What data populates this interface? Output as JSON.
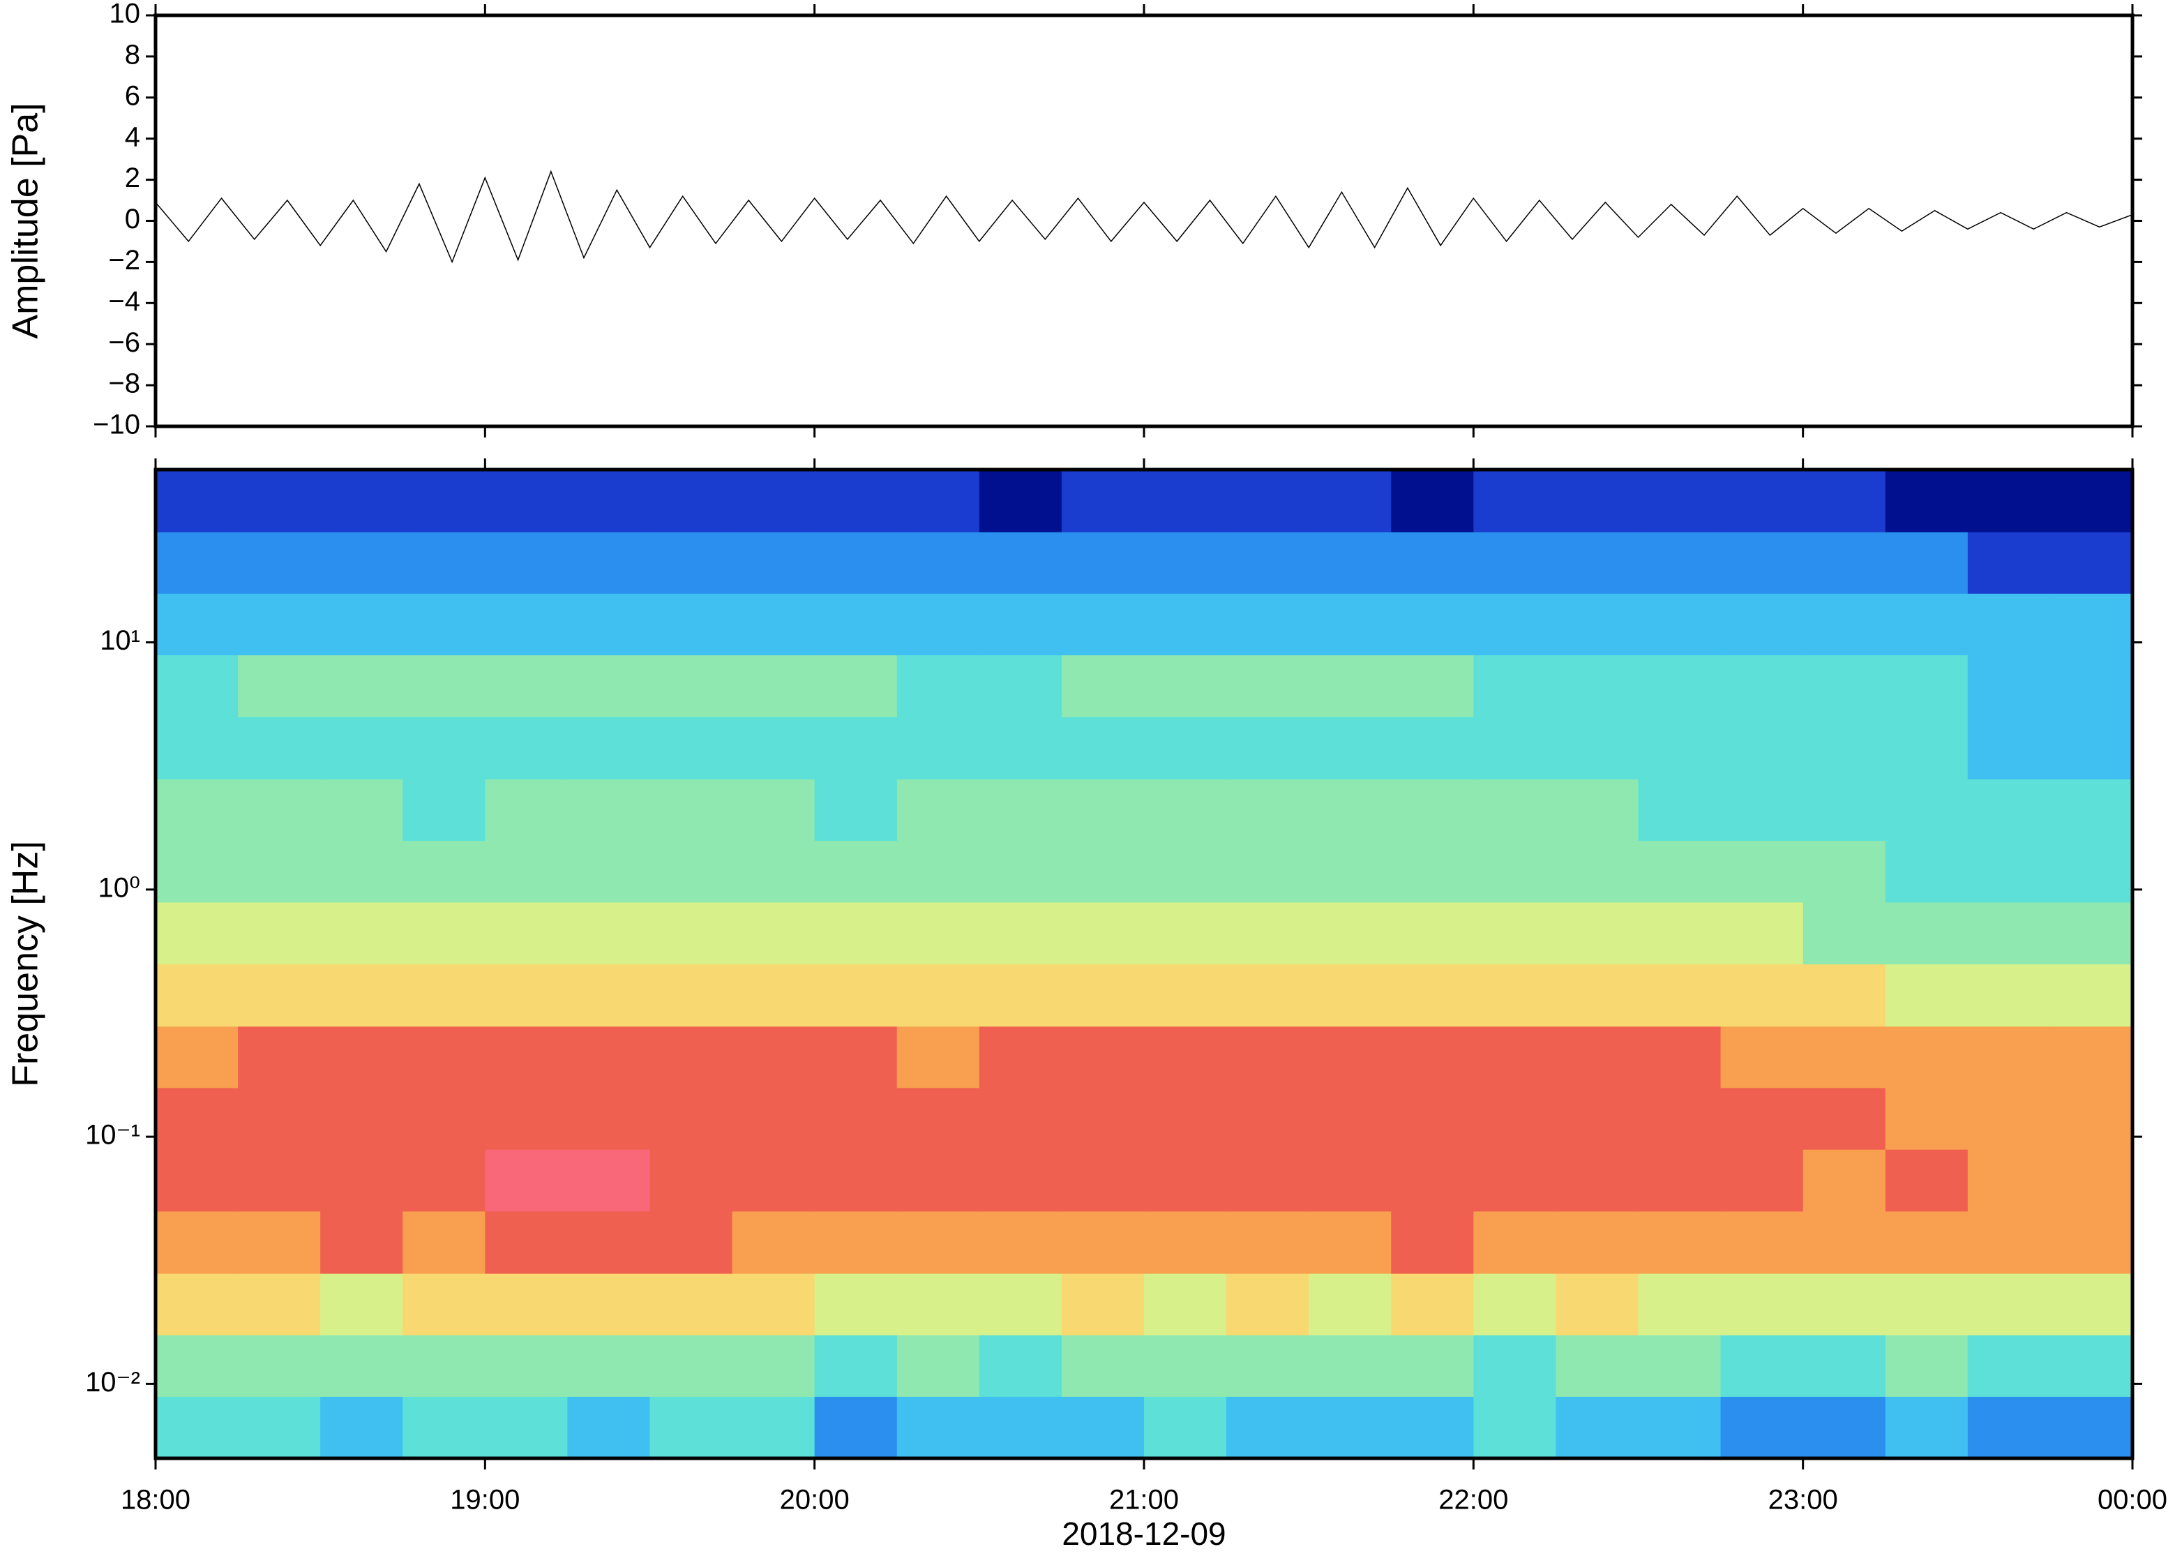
{
  "chart_data": [
    {
      "type": "line",
      "ylabel": "Amplitude [Pa]",
      "color": "#000000",
      "xlim": [
        18,
        24
      ],
      "xticks": [
        {
          "value": 18,
          "label": "18:00"
        },
        {
          "value": 19,
          "label": "19:00"
        },
        {
          "value": 20,
          "label": "20:00"
        },
        {
          "value": 21,
          "label": "21:00"
        },
        {
          "value": 22,
          "label": "22:00"
        },
        {
          "value": 23,
          "label": "23:00"
        },
        {
          "value": 24,
          "label": "00:00"
        }
      ],
      "ylim": [
        -10,
        10
      ],
      "yticks": [
        {
          "value": -10,
          "label": "−10"
        },
        {
          "value": -8,
          "label": "−8"
        },
        {
          "value": -6,
          "label": "−6"
        },
        {
          "value": -4,
          "label": "−4"
        },
        {
          "value": -2,
          "label": "−2"
        },
        0,
        2,
        4,
        6,
        8,
        10
      ],
      "x": [
        18,
        18.1,
        18.2,
        18.3,
        18.4,
        18.5,
        18.6,
        18.7,
        18.8,
        18.9,
        19,
        19.1,
        19.2,
        19.3,
        19.4,
        19.5,
        19.6,
        19.7,
        19.8,
        19.9,
        20,
        20.1,
        20.2,
        20.3,
        20.4,
        20.5,
        20.6,
        20.7,
        20.8,
        20.9,
        21,
        21.1,
        21.2,
        21.3,
        21.4,
        21.5,
        21.6,
        21.7,
        21.8,
        21.9,
        22,
        22.1,
        22.2,
        22.3,
        22.4,
        22.5,
        22.6,
        22.7,
        22.8,
        22.9,
        23,
        23.1,
        23.2,
        23.3,
        23.4,
        23.5,
        23.6,
        23.7,
        23.8,
        23.9,
        24
      ],
      "values": [
        0.9,
        -1.0,
        1.1,
        -0.9,
        1.0,
        -1.2,
        1.0,
        -1.5,
        1.8,
        -2.0,
        2.1,
        -1.9,
        2.4,
        -1.8,
        1.5,
        -1.3,
        1.2,
        -1.1,
        1.0,
        -1.0,
        1.1,
        -0.9,
        1.0,
        -1.1,
        1.2,
        -1.0,
        1.0,
        -0.9,
        1.1,
        -1.0,
        0.9,
        -1.0,
        1.0,
        -1.1,
        1.2,
        -1.3,
        1.4,
        -1.3,
        1.6,
        -1.2,
        1.1,
        -1.0,
        1.0,
        -0.9,
        0.9,
        -0.8,
        0.8,
        -0.7,
        1.2,
        -0.7,
        0.6,
        -0.6,
        0.6,
        -0.5,
        0.5,
        -0.4,
        0.4,
        -0.4,
        0.4,
        -0.3,
        0.3
      ]
    },
    {
      "type": "heatmap",
      "ylabel": "Frequency [Hz]",
      "xlabel": "2018-12-09",
      "ylog": true,
      "xlim": [
        18,
        24
      ],
      "xticks": [
        {
          "value": 18,
          "label": "18:00"
        },
        {
          "value": 19,
          "label": "19:00"
        },
        {
          "value": 20,
          "label": "20:00"
        },
        {
          "value": 21,
          "label": "21:00"
        },
        {
          "value": 22,
          "label": "22:00"
        },
        {
          "value": 23,
          "label": "23:00"
        },
        {
          "value": 24,
          "label": "00:00"
        }
      ],
      "ylim": [
        0.005,
        50
      ],
      "yticks": [
        {
          "value": 0.01,
          "label": "10⁻²"
        },
        {
          "value": 0.1,
          "label": "10⁻¹"
        },
        {
          "value": 1,
          "label": "10⁰"
        },
        {
          "value": 10,
          "label": "10¹"
        }
      ],
      "colorscale": [
        "#00108f",
        "#1a3ccf",
        "#2a8fef",
        "#3fc0f0",
        "#5ce0d8",
        "#8ee8b0",
        "#d8f08a",
        "#f8d870",
        "#f8a050",
        "#f06050",
        "#f86878"
      ],
      "xbins": [
        18,
        18.25,
        18.5,
        18.75,
        19,
        19.25,
        19.5,
        19.75,
        20,
        20.25,
        20.5,
        20.75,
        21,
        21.25,
        21.5,
        21.75,
        22,
        22.25,
        22.5,
        22.75,
        23,
        23.25,
        23.5,
        23.75,
        24
      ],
      "ybins": [
        0.005,
        0.0089,
        0.0158,
        0.028,
        0.05,
        0.089,
        0.158,
        0.28,
        0.5,
        0.89,
        1.58,
        2.8,
        5,
        8.9,
        15.8,
        28,
        50
      ],
      "z": [
        [
          4,
          4,
          3,
          4,
          4,
          3,
          4,
          4,
          2,
          3,
          3,
          3,
          4,
          3,
          3,
          3,
          4,
          3,
          3,
          2,
          2,
          3,
          2,
          2
        ],
        [
          5,
          5,
          5,
          5,
          5,
          5,
          5,
          5,
          4,
          5,
          4,
          5,
          5,
          5,
          5,
          5,
          4,
          5,
          5,
          4,
          4,
          5,
          4,
          4
        ],
        [
          7,
          7,
          6,
          7,
          7,
          7,
          7,
          7,
          6,
          6,
          6,
          7,
          6,
          7,
          6,
          7,
          6,
          7,
          6,
          6,
          6,
          6,
          6,
          6
        ],
        [
          8,
          8,
          9,
          8,
          9,
          9,
          9,
          8,
          8,
          8,
          8,
          8,
          8,
          8,
          8,
          9,
          8,
          8,
          8,
          8,
          8,
          8,
          8,
          8
        ],
        [
          9,
          9,
          9,
          9,
          10,
          10,
          9,
          9,
          9,
          9,
          9,
          9,
          9,
          9,
          9,
          9,
          9,
          9,
          9,
          9,
          8,
          9,
          8,
          8
        ],
        [
          9,
          9,
          9,
          9,
          9,
          9,
          9,
          9,
          9,
          9,
          9,
          9,
          9,
          9,
          9,
          9,
          9,
          9,
          9,
          9,
          9,
          8,
          8,
          8
        ],
        [
          8,
          9,
          9,
          9,
          9,
          9,
          9,
          9,
          9,
          8,
          9,
          9,
          9,
          9,
          9,
          9,
          9,
          9,
          9,
          8,
          8,
          8,
          8,
          8
        ],
        [
          7,
          7,
          7,
          7,
          7,
          7,
          7,
          7,
          7,
          7,
          7,
          7,
          7,
          7,
          7,
          7,
          7,
          7,
          7,
          7,
          7,
          6,
          6,
          6
        ],
        [
          6,
          6,
          6,
          6,
          6,
          6,
          6,
          6,
          6,
          6,
          6,
          6,
          6,
          6,
          6,
          6,
          6,
          6,
          6,
          6,
          5,
          5,
          5,
          5
        ],
        [
          5,
          5,
          5,
          5,
          5,
          5,
          5,
          5,
          5,
          5,
          5,
          5,
          5,
          5,
          5,
          5,
          5,
          5,
          5,
          5,
          5,
          4,
          4,
          4
        ],
        [
          5,
          5,
          5,
          4,
          5,
          5,
          5,
          5,
          4,
          5,
          5,
          5,
          5,
          5,
          5,
          5,
          5,
          5,
          4,
          4,
          4,
          4,
          4,
          4
        ],
        [
          4,
          4,
          4,
          4,
          4,
          4,
          4,
          4,
          4,
          4,
          4,
          4,
          4,
          4,
          4,
          4,
          4,
          4,
          4,
          4,
          4,
          4,
          3,
          3
        ],
        [
          4,
          5,
          5,
          5,
          5,
          5,
          5,
          5,
          5,
          4,
          4,
          5,
          5,
          5,
          5,
          5,
          4,
          4,
          4,
          4,
          4,
          4,
          3,
          3
        ],
        [
          3,
          3,
          3,
          3,
          3,
          3,
          3,
          3,
          3,
          3,
          3,
          3,
          3,
          3,
          3,
          3,
          3,
          3,
          3,
          3,
          3,
          3,
          3,
          3
        ],
        [
          2,
          2,
          2,
          2,
          2,
          2,
          2,
          2,
          2,
          2,
          2,
          2,
          2,
          2,
          2,
          2,
          2,
          2,
          2,
          2,
          2,
          2,
          1,
          1
        ],
        [
          1,
          1,
          1,
          1,
          1,
          1,
          1,
          1,
          1,
          1,
          0,
          1,
          1,
          1,
          1,
          0,
          1,
          1,
          1,
          1,
          1,
          0,
          0,
          0
        ]
      ]
    }
  ]
}
